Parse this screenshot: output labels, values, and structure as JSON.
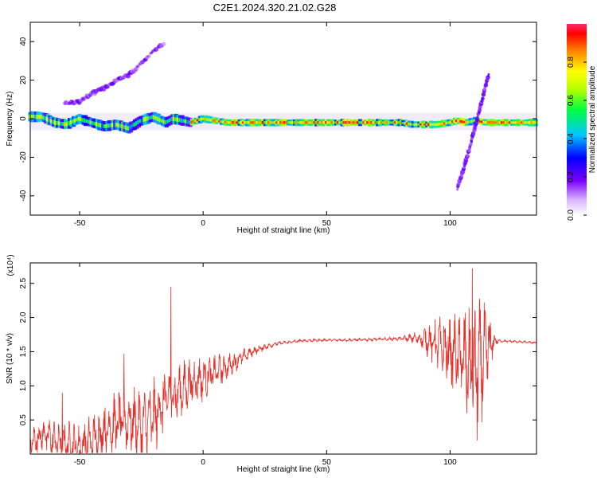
{
  "title": "C2E1.2024.320.21.02.G28",
  "chart_data": [
    {
      "type": "heatmap",
      "xlabel": "Height of straight line (km)",
      "ylabel": "Frequency (Hz)",
      "xlim": [
        -70,
        135
      ],
      "ylim": [
        -50,
        50
      ],
      "xticks": [
        -50,
        0,
        50,
        100
      ],
      "yticks": [
        -40,
        -20,
        0,
        20,
        40
      ],
      "colorbar": {
        "label": "Normalized spectral amplitude",
        "ticks": [
          "0.0",
          "0.2",
          "0.4",
          "0.6",
          "0.8"
        ],
        "range": [
          0,
          1
        ]
      },
      "ridge": [
        [
          -70,
          1
        ],
        [
          -65,
          1
        ],
        [
          -60,
          -2
        ],
        [
          -55,
          -3
        ],
        [
          -50,
          0
        ],
        [
          -45,
          -2
        ],
        [
          -40,
          -4
        ],
        [
          -35,
          -3
        ],
        [
          -30,
          -5
        ],
        [
          -25,
          -1
        ],
        [
          -20,
          1
        ],
        [
          -15,
          -2
        ],
        [
          -12,
          0
        ],
        [
          -8,
          -1
        ],
        [
          -5,
          -2
        ],
        [
          0,
          0
        ],
        [
          5,
          -1
        ],
        [
          10,
          -2
        ],
        [
          20,
          -2
        ],
        [
          40,
          -2
        ],
        [
          60,
          -2
        ],
        [
          80,
          -2
        ],
        [
          85,
          -3
        ],
        [
          90,
          -3
        ],
        [
          95,
          -3
        ],
        [
          100,
          -2
        ],
        [
          103,
          -1
        ],
        [
          107,
          -2
        ],
        [
          110,
          -1
        ],
        [
          115,
          -2
        ],
        [
          125,
          -2
        ],
        [
          135,
          -2
        ]
      ],
      "upper_branch": [
        [
          -55,
          8
        ],
        [
          -50,
          9
        ],
        [
          -45,
          13
        ],
        [
          -40,
          16
        ],
        [
          -35,
          20
        ],
        [
          -30,
          23
        ],
        [
          -28,
          25
        ],
        [
          -25,
          29
        ],
        [
          -20,
          35
        ],
        [
          -15,
          40
        ]
      ],
      "steep_branch": [
        [
          103,
          -36
        ],
        [
          105,
          -28
        ],
        [
          108,
          -15
        ],
        [
          110,
          -5
        ],
        [
          112,
          5
        ],
        [
          114,
          15
        ],
        [
          116,
          25
        ]
      ]
    },
    {
      "type": "line",
      "xlabel": "Height of straight line (km)",
      "ylabel": "SNR (10 * v/v)",
      "y_multiplier": "(x10⁴)",
      "xlim": [
        -70,
        135
      ],
      "ylim": [
        0,
        2.8
      ],
      "xticks": [
        -50,
        0,
        50,
        100
      ],
      "yticks": [
        0.5,
        1.0,
        1.5,
        2.0,
        2.5
      ],
      "series": [
        {
          "color": "#e8302a",
          "points": [
            [
              -70,
              0.15
            ],
            [
              -65,
              0.3
            ],
            [
              -60,
              0.2
            ],
            [
              -55,
              0.15
            ],
            [
              -50,
              0.1
            ],
            [
              -45,
              0.2
            ],
            [
              -40,
              0.35
            ],
            [
              -35,
              0.45
            ],
            [
              -30,
              0.5
            ],
            [
              -25,
              0.4
            ],
            [
              -20,
              0.55
            ],
            [
              -15,
              0.8
            ],
            [
              -10,
              0.9
            ],
            [
              -5,
              1.05
            ],
            [
              0,
              1.1
            ],
            [
              5,
              1.2
            ],
            [
              10,
              1.28
            ],
            [
              15,
              1.4
            ],
            [
              20,
              1.5
            ],
            [
              25,
              1.57
            ],
            [
              30,
              1.62
            ],
            [
              40,
              1.66
            ],
            [
              50,
              1.67
            ],
            [
              60,
              1.67
            ],
            [
              70,
              1.68
            ],
            [
              80,
              1.69
            ],
            [
              85,
              1.7
            ],
            [
              90,
              1.68
            ],
            [
              95,
              1.6
            ],
            [
              100,
              1.5
            ],
            [
              105,
              1.4
            ],
            [
              110,
              1.2
            ],
            [
              115,
              1.5
            ],
            [
              118,
              1.66
            ],
            [
              125,
              1.65
            ],
            [
              135,
              1.63
            ]
          ]
        }
      ],
      "noise_amplitude": [
        [
          -70,
          0.25
        ],
        [
          -40,
          0.45
        ],
        [
          -30,
          0.55
        ],
        [
          -15,
          0.6
        ],
        [
          -10,
          0.45
        ],
        [
          0,
          0.35
        ],
        [
          10,
          0.2
        ],
        [
          20,
          0.08
        ],
        [
          30,
          0.03
        ],
        [
          50,
          0.02
        ],
        [
          80,
          0.03
        ],
        [
          88,
          0.12
        ],
        [
          95,
          0.45
        ],
        [
          100,
          0.55
        ],
        [
          105,
          0.8
        ],
        [
          110,
          1.1
        ],
        [
          115,
          0.8
        ],
        [
          118,
          0.1
        ],
        [
          120,
          0.02
        ],
        [
          135,
          0.02
        ]
      ],
      "spikes": [
        [
          -13,
          2.45
        ],
        [
          -32,
          1.47
        ],
        [
          -57,
          0.9
        ],
        [
          109,
          2.72
        ],
        [
          111,
          0.2
        ]
      ]
    }
  ]
}
